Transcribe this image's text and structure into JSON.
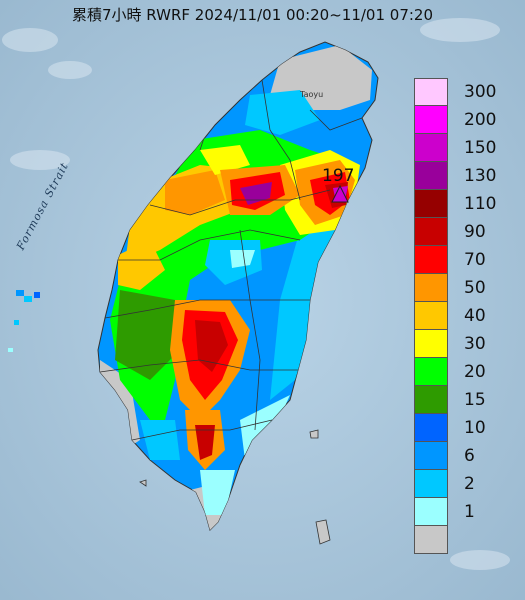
{
  "title": "累積7小時 RWRF 2024/11/01 00:20~11/01 07:20",
  "strait_label": "Formosa Strait",
  "max_value": "197",
  "city_label": "Taoyu",
  "legend": [
    {
      "label": "300",
      "color": "#ffc8ff"
    },
    {
      "label": "200",
      "color": "#ff00ff"
    },
    {
      "label": "150",
      "color": "#cc00cc"
    },
    {
      "label": "130",
      "color": "#99009b"
    },
    {
      "label": "110",
      "color": "#960000"
    },
    {
      "label": "90",
      "color": "#c80000"
    },
    {
      "label": "70",
      "color": "#ff0000"
    },
    {
      "label": "50",
      "color": "#ff9600"
    },
    {
      "label": "40",
      "color": "#ffc800"
    },
    {
      "label": "30",
      "color": "#ffff00"
    },
    {
      "label": "20",
      "color": "#00ff00"
    },
    {
      "label": "15",
      "color": "#2e9b00"
    },
    {
      "label": "10",
      "color": "#0064ff"
    },
    {
      "label": "6",
      "color": "#0096ff"
    },
    {
      "label": "2",
      "color": "#00c8ff"
    },
    {
      "label": "1",
      "color": "#9bffff"
    },
    {
      "label": "",
      "color": "#c8c8c8"
    }
  ]
}
